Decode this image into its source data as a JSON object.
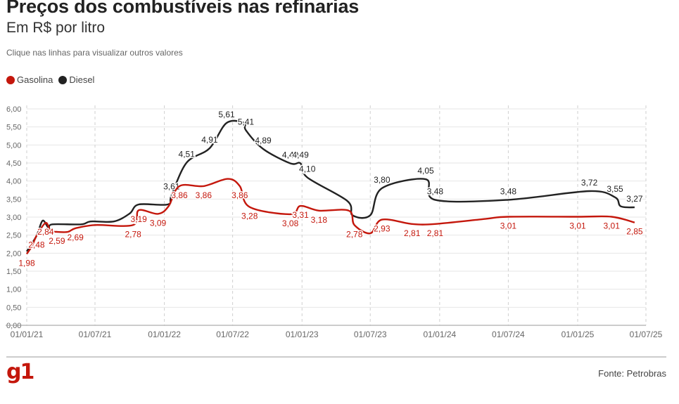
{
  "header": {
    "title": "Preços dos combustíveis nas refinarias",
    "subtitle": "Em R$ por litro",
    "note": "Clique nas linhas para visualizar outros valores"
  },
  "legend": [
    {
      "name": "Gasolina",
      "color": "#c4170c"
    },
    {
      "name": "Diesel",
      "color": "#222222"
    }
  ],
  "footer": {
    "logo": "g1",
    "source": "Fonte: Petrobras"
  },
  "chart_data": {
    "type": "line",
    "xlabel": "",
    "ylabel": "",
    "ylim": [
      0,
      6
    ],
    "yticks": [
      "0,00",
      "0,50",
      "1,00",
      "1,50",
      "2,00",
      "2,50",
      "3,00",
      "3,50",
      "4,00",
      "4,50",
      "5,00",
      "5,50",
      "6,00"
    ],
    "xtick_labels": [
      "01/01/21",
      "01/07/21",
      "01/01/22",
      "01/07/22",
      "01/01/23",
      "01/07/23",
      "01/01/24",
      "01/07/24",
      "01/01/25",
      "01/07/25"
    ],
    "grid": true,
    "legend_position": "top-left",
    "series": [
      {
        "name": "Gasolina",
        "color": "#c4170c",
        "points": [
          {
            "x": "2021-01-01",
            "y": 1.98,
            "label": "1,98"
          },
          {
            "x": "2021-01-15",
            "y": 2.2
          },
          {
            "x": "2021-01-27",
            "y": 2.48,
            "label": "2,48"
          },
          {
            "x": "2021-02-20",
            "y": 2.84,
            "label": "2,84"
          },
          {
            "x": "2021-03-05",
            "y": 2.62
          },
          {
            "x": "2021-03-22",
            "y": 2.59,
            "label": "2,59"
          },
          {
            "x": "2021-04-20",
            "y": 2.59
          },
          {
            "x": "2021-05-10",
            "y": 2.69,
            "label": "2,69"
          },
          {
            "x": "2021-07-01",
            "y": 2.78
          },
          {
            "x": "2021-10-10",
            "y": 2.78,
            "label": "2,78"
          },
          {
            "x": "2021-10-25",
            "y": 3.19,
            "label": "3,19"
          },
          {
            "x": "2021-12-15",
            "y": 3.09,
            "label": "3,09"
          },
          {
            "x": "2022-01-12",
            "y": 3.3
          },
          {
            "x": "2022-02-10",
            "y": 3.86,
            "label": "3,86"
          },
          {
            "x": "2022-04-15",
            "y": 3.86,
            "label": "3,86"
          },
          {
            "x": "2022-06-18",
            "y": 4.06
          },
          {
            "x": "2022-07-20",
            "y": 3.86,
            "label": "3,86"
          },
          {
            "x": "2022-08-15",
            "y": 3.28,
            "label": "3,28"
          },
          {
            "x": "2022-12-01",
            "y": 3.08,
            "label": "3,08"
          },
          {
            "x": "2022-12-28",
            "y": 3.31,
            "label": "3,31"
          },
          {
            "x": "2023-02-15",
            "y": 3.18,
            "label": "3,18"
          },
          {
            "x": "2023-05-05",
            "y": 3.18
          },
          {
            "x": "2023-05-20",
            "y": 2.78,
            "label": "2,78"
          },
          {
            "x": "2023-07-01",
            "y": 2.55
          },
          {
            "x": "2023-08-01",
            "y": 2.93,
            "label": "2,93"
          },
          {
            "x": "2023-10-20",
            "y": 2.81,
            "label": "2,81"
          },
          {
            "x": "2023-12-20",
            "y": 2.81,
            "label": "2,81"
          },
          {
            "x": "2024-05-01",
            "y": 2.95
          },
          {
            "x": "2024-07-01",
            "y": 3.01,
            "label": "3,01"
          },
          {
            "x": "2025-01-01",
            "y": 3.01,
            "label": "3,01"
          },
          {
            "x": "2025-04-01",
            "y": 3.01,
            "label": "3,01"
          },
          {
            "x": "2025-06-01",
            "y": 2.85,
            "label": "2,85"
          }
        ]
      },
      {
        "name": "Diesel",
        "color": "#222222",
        "points": [
          {
            "x": "2021-01-01",
            "y": 2.05
          },
          {
            "x": "2021-01-27",
            "y": 2.48
          },
          {
            "x": "2021-02-12",
            "y": 2.9
          },
          {
            "x": "2021-02-28",
            "y": 2.7
          },
          {
            "x": "2021-03-10",
            "y": 2.8
          },
          {
            "x": "2021-05-25",
            "y": 2.8
          },
          {
            "x": "2021-06-20",
            "y": 2.88
          },
          {
            "x": "2021-08-20",
            "y": 2.88
          },
          {
            "x": "2021-10-01",
            "y": 3.1
          },
          {
            "x": "2021-10-25",
            "y": 3.35
          },
          {
            "x": "2022-01-10",
            "y": 3.35
          },
          {
            "x": "2022-01-20",
            "y": 3.61,
            "label": "3,61"
          },
          {
            "x": "2022-03-01",
            "y": 4.51,
            "label": "4,51"
          },
          {
            "x": "2022-05-01",
            "y": 4.91,
            "label": "4,91"
          },
          {
            "x": "2022-06-15",
            "y": 5.61,
            "label": "5,61"
          },
          {
            "x": "2022-08-01",
            "y": 5.61
          },
          {
            "x": "2022-08-05",
            "y": 5.41,
            "label": "5,41"
          },
          {
            "x": "2022-09-20",
            "y": 4.89,
            "label": "4,89"
          },
          {
            "x": "2022-12-01",
            "y": 4.49,
            "label": "4,49"
          },
          {
            "x": "2022-12-28",
            "y": 4.49,
            "label": "4,49"
          },
          {
            "x": "2023-01-15",
            "y": 4.1,
            "label": "4,10"
          },
          {
            "x": "2023-05-01",
            "y": 3.45
          },
          {
            "x": "2023-05-15",
            "y": 3.05
          },
          {
            "x": "2023-07-01",
            "y": 3.05
          },
          {
            "x": "2023-08-01",
            "y": 3.8,
            "label": "3,80"
          },
          {
            "x": "2023-11-25",
            "y": 4.05,
            "label": "4,05"
          },
          {
            "x": "2023-12-20",
            "y": 3.48,
            "label": "3,48"
          },
          {
            "x": "2024-07-01",
            "y": 3.48,
            "label": "3,48"
          },
          {
            "x": "2025-02-01",
            "y": 3.72,
            "label": "3,72"
          },
          {
            "x": "2025-04-10",
            "y": 3.55,
            "label": "3,55"
          },
          {
            "x": "2025-04-25",
            "y": 3.3
          },
          {
            "x": "2025-06-01",
            "y": 3.27,
            "label": "3,27"
          }
        ]
      }
    ]
  }
}
